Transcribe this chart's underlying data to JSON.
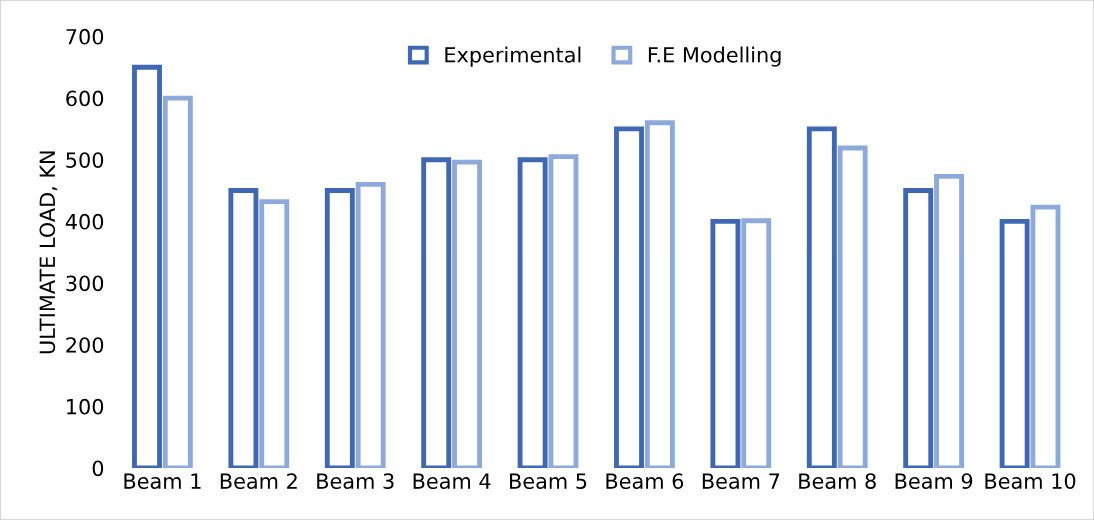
{
  "chart_data": {
    "type": "bar",
    "ylabel": "ULTIMATE LOAD, KN",
    "categories": [
      "Beam 1",
      "Beam 2",
      "Beam 3",
      "Beam 4",
      "Beam 5",
      "Beam 6",
      "Beam 7",
      "Beam 8",
      "Beam 9",
      "Beam 10"
    ],
    "series": [
      {
        "name": "Experimental",
        "color": "#4068b2",
        "values": [
          650,
          450,
          450,
          500,
          500,
          550,
          400,
          550,
          450,
          400
        ]
      },
      {
        "name": "F.E Modelling",
        "color": "#8eaadb",
        "values": [
          600,
          432,
          460,
          496,
          505,
          560,
          401,
          519,
          473,
          423
        ]
      }
    ],
    "ylim": [
      0,
      700
    ],
    "yticks": [
      0,
      100,
      200,
      300,
      400,
      500,
      600,
      700
    ],
    "grid": false,
    "legend": "top"
  }
}
